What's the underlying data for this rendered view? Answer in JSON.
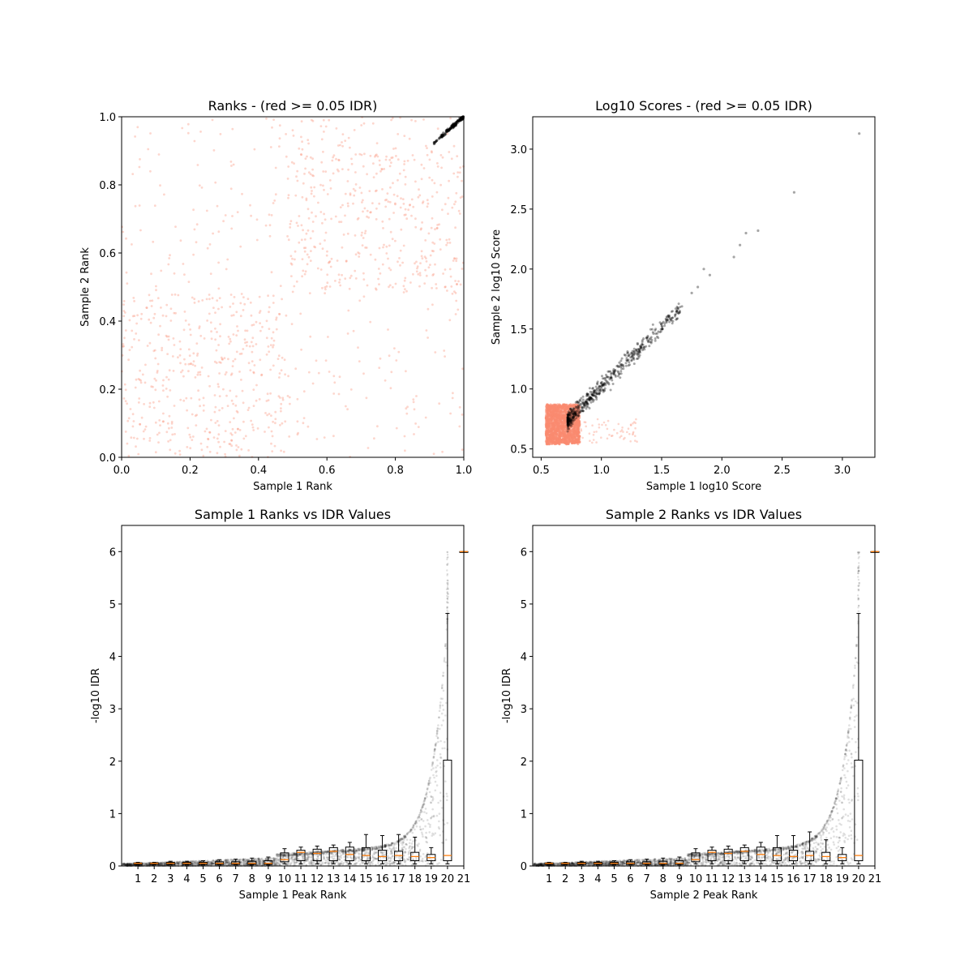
{
  "figure": {
    "colors": {
      "fail": "#fa8a70",
      "pass": "#000000",
      "median": "#ff7f0e",
      "box": "#000000"
    }
  },
  "chart_data": [
    {
      "type": "scatter",
      "title": "Ranks - (red >= 0.05 IDR)",
      "xlabel": "Sample 1 Rank",
      "ylabel": "Sample 2 Rank",
      "xlim": [
        0.0,
        1.0
      ],
      "ylim": [
        0.0,
        1.0
      ],
      "xticks": [
        "0.0",
        "0.2",
        "0.4",
        "0.6",
        "0.8",
        "1.0"
      ],
      "yticks": [
        "0.0",
        "0.2",
        "0.4",
        "0.6",
        "0.8",
        "1.0"
      ],
      "grid": false,
      "series": [
        {
          "color": "#fa8a70",
          "blocks": [
            {
              "x": [
                0.0,
                0.48
              ],
              "y": [
                0.0,
                0.48
              ],
              "density": "high"
            },
            {
              "x": [
                0.0,
                0.48
              ],
              "y": [
                0.48,
                0.89
              ],
              "density": "low"
            },
            {
              "x": [
                0.0,
                0.48
              ],
              "y": [
                0.89,
                1.0
              ],
              "density": "low"
            },
            {
              "x": [
                0.48,
                0.9
              ],
              "y": [
                0.48,
                0.89
              ],
              "density": "high"
            },
            {
              "x": [
                0.48,
                0.9
              ],
              "y": [
                0.0,
                0.48
              ],
              "density": "low"
            },
            {
              "x": [
                0.48,
                0.9
              ],
              "y": [
                0.89,
                1.0
              ],
              "density": "medium"
            },
            {
              "x": [
                0.9,
                1.0
              ],
              "y": [
                0.48,
                0.9
              ],
              "density": "high"
            },
            {
              "x": [
                0.9,
                1.0
              ],
              "y": [
                0.0,
                0.48
              ],
              "density": "low"
            },
            {
              "x": [
                0.9,
                1.0
              ],
              "y": [
                0.9,
                1.0
              ],
              "density": "low"
            }
          ]
        },
        {
          "color": "#000000",
          "trend": {
            "x": [
              0.91,
              1.0
            ],
            "y": [
              0.92,
              1.0
            ]
          }
        }
      ]
    },
    {
      "type": "scatter",
      "title": "Log10 Scores - (red >= 0.05 IDR)",
      "xlabel": "Sample 1 log10 Score",
      "ylabel": "Sample 2 log10 Score",
      "xlim": [
        0.43,
        3.27
      ],
      "ylim": [
        0.43,
        3.27
      ],
      "xticks": [
        "0.5",
        "1.0",
        "1.5",
        "2.0",
        "2.5",
        "3.0"
      ],
      "yticks": [
        "0.5",
        "1.0",
        "1.5",
        "2.0",
        "2.5",
        "3.0"
      ],
      "grid": false,
      "series": [
        {
          "color": "#fa8a70",
          "cluster": {
            "x": [
              0.54,
              0.82
            ],
            "y": [
              0.54,
              0.87
            ]
          }
        },
        {
          "color": "#000000",
          "points": [
            [
              0.72,
              0.73
            ],
            [
              0.75,
              0.75
            ],
            [
              0.78,
              0.78
            ],
            [
              0.82,
              0.82
            ],
            [
              0.85,
              0.88
            ],
            [
              0.9,
              0.92
            ],
            [
              0.95,
              0.98
            ],
            [
              1.0,
              1.02
            ],
            [
              1.05,
              1.1
            ],
            [
              1.1,
              1.15
            ],
            [
              1.15,
              1.22
            ],
            [
              1.2,
              1.28
            ],
            [
              1.25,
              1.3
            ],
            [
              1.3,
              1.38
            ],
            [
              1.35,
              1.42
            ],
            [
              1.45,
              1.5
            ],
            [
              1.55,
              1.6
            ],
            [
              1.65,
              1.65
            ],
            [
              1.75,
              1.8
            ],
            [
              1.8,
              1.85
            ],
            [
              1.85,
              2.0
            ],
            [
              1.9,
              1.95
            ],
            [
              2.1,
              2.1
            ],
            [
              2.15,
              2.2
            ],
            [
              2.2,
              2.3
            ],
            [
              2.3,
              2.32
            ],
            [
              2.6,
              2.64
            ],
            [
              3.14,
              3.13
            ]
          ]
        }
      ]
    },
    {
      "type": "box",
      "title": "Sample 1 Ranks vs IDR Values",
      "xlabel": "Sample 1 Peak Rank",
      "ylabel": "-log10 IDR",
      "xlim": [
        0,
        21
      ],
      "ylim": [
        0,
        6.5
      ],
      "xticks": [
        "1",
        "2",
        "3",
        "4",
        "5",
        "6",
        "7",
        "8",
        "9",
        "10",
        "11",
        "12",
        "13",
        "14",
        "15",
        "16",
        "17",
        "18",
        "19",
        "20",
        "21"
      ],
      "yticks": [
        "0",
        "1",
        "2",
        "3",
        "4",
        "5",
        "6"
      ],
      "grid": false,
      "boxes": [
        {
          "pos": 1,
          "q1": 0.03,
          "med": 0.05,
          "q3": 0.06,
          "whislo": 0.02,
          "whishi": 0.07
        },
        {
          "pos": 2,
          "q1": 0.03,
          "med": 0.05,
          "q3": 0.06,
          "whislo": 0.02,
          "whishi": 0.07
        },
        {
          "pos": 3,
          "q1": 0.03,
          "med": 0.05,
          "q3": 0.07,
          "whislo": 0.02,
          "whishi": 0.09
        },
        {
          "pos": 4,
          "q1": 0.03,
          "med": 0.05,
          "q3": 0.07,
          "whislo": 0.02,
          "whishi": 0.09
        },
        {
          "pos": 5,
          "q1": 0.03,
          "med": 0.05,
          "q3": 0.07,
          "whislo": 0.02,
          "whishi": 0.1
        },
        {
          "pos": 6,
          "q1": 0.03,
          "med": 0.05,
          "q3": 0.08,
          "whislo": 0.02,
          "whishi": 0.12
        },
        {
          "pos": 7,
          "q1": 0.03,
          "med": 0.05,
          "q3": 0.08,
          "whislo": 0.02,
          "whishi": 0.13
        },
        {
          "pos": 8,
          "q1": 0.03,
          "med": 0.05,
          "q3": 0.09,
          "whislo": 0.02,
          "whishi": 0.15
        },
        {
          "pos": 9,
          "q1": 0.03,
          "med": 0.05,
          "q3": 0.1,
          "whislo": 0.02,
          "whishi": 0.17
        },
        {
          "pos": 10,
          "q1": 0.08,
          "med": 0.12,
          "q3": 0.25,
          "whislo": 0.04,
          "whishi": 0.33
        },
        {
          "pos": 11,
          "q1": 0.1,
          "med": 0.26,
          "q3": 0.3,
          "whislo": 0.04,
          "whishi": 0.36
        },
        {
          "pos": 12,
          "q1": 0.1,
          "med": 0.24,
          "q3": 0.32,
          "whislo": 0.04,
          "whishi": 0.38
        },
        {
          "pos": 13,
          "q1": 0.1,
          "med": 0.28,
          "q3": 0.35,
          "whislo": 0.04,
          "whishi": 0.4
        },
        {
          "pos": 14,
          "q1": 0.1,
          "med": 0.22,
          "q3": 0.36,
          "whislo": 0.04,
          "whishi": 0.45
        },
        {
          "pos": 15,
          "q1": 0.1,
          "med": 0.2,
          "q3": 0.35,
          "whislo": 0.04,
          "whishi": 0.6
        },
        {
          "pos": 16,
          "q1": 0.1,
          "med": 0.18,
          "q3": 0.3,
          "whislo": 0.04,
          "whishi": 0.58
        },
        {
          "pos": 17,
          "q1": 0.1,
          "med": 0.2,
          "q3": 0.28,
          "whislo": 0.04,
          "whishi": 0.6
        },
        {
          "pos": 18,
          "q1": 0.1,
          "med": 0.18,
          "q3": 0.26,
          "whislo": 0.04,
          "whishi": 0.55
        },
        {
          "pos": 19,
          "q1": 0.1,
          "med": 0.16,
          "q3": 0.22,
          "whislo": 0.04,
          "whishi": 0.35
        },
        {
          "pos": 20,
          "q1": 0.1,
          "med": 0.2,
          "q3": 2.02,
          "whislo": 0.04,
          "whishi": 4.82
        },
        {
          "pos": 21,
          "q1": 6.0,
          "med": 6.0,
          "q3": 6.0,
          "whislo": 6.0,
          "whishi": 6.0
        }
      ]
    },
    {
      "type": "box",
      "title": "Sample 2 Ranks vs IDR Values",
      "xlabel": "Sample 2 Peak Rank",
      "ylabel": "-log10 IDR",
      "xlim": [
        0,
        21
      ],
      "ylim": [
        0,
        6.5
      ],
      "xticks": [
        "1",
        "2",
        "3",
        "4",
        "5",
        "6",
        "7",
        "8",
        "9",
        "10",
        "11",
        "12",
        "13",
        "14",
        "15",
        "16",
        "17",
        "18",
        "19",
        "20",
        "21"
      ],
      "yticks": [
        "0",
        "1",
        "2",
        "3",
        "4",
        "5",
        "6"
      ],
      "grid": false,
      "boxes": [
        {
          "pos": 1,
          "q1": 0.03,
          "med": 0.05,
          "q3": 0.06,
          "whislo": 0.02,
          "whishi": 0.07
        },
        {
          "pos": 2,
          "q1": 0.03,
          "med": 0.05,
          "q3": 0.06,
          "whislo": 0.02,
          "whishi": 0.07
        },
        {
          "pos": 3,
          "q1": 0.03,
          "med": 0.05,
          "q3": 0.07,
          "whislo": 0.02,
          "whishi": 0.09
        },
        {
          "pos": 4,
          "q1": 0.03,
          "med": 0.05,
          "q3": 0.07,
          "whislo": 0.02,
          "whishi": 0.09
        },
        {
          "pos": 5,
          "q1": 0.03,
          "med": 0.05,
          "q3": 0.07,
          "whislo": 0.02,
          "whishi": 0.1
        },
        {
          "pos": 6,
          "q1": 0.03,
          "med": 0.05,
          "q3": 0.08,
          "whislo": 0.02,
          "whishi": 0.12
        },
        {
          "pos": 7,
          "q1": 0.03,
          "med": 0.05,
          "q3": 0.08,
          "whislo": 0.02,
          "whishi": 0.13
        },
        {
          "pos": 8,
          "q1": 0.03,
          "med": 0.05,
          "q3": 0.09,
          "whislo": 0.02,
          "whishi": 0.15
        },
        {
          "pos": 9,
          "q1": 0.03,
          "med": 0.05,
          "q3": 0.1,
          "whislo": 0.02,
          "whishi": 0.17
        },
        {
          "pos": 10,
          "q1": 0.08,
          "med": 0.12,
          "q3": 0.25,
          "whislo": 0.04,
          "whishi": 0.33
        },
        {
          "pos": 11,
          "q1": 0.1,
          "med": 0.26,
          "q3": 0.3,
          "whislo": 0.04,
          "whishi": 0.36
        },
        {
          "pos": 12,
          "q1": 0.1,
          "med": 0.24,
          "q3": 0.32,
          "whislo": 0.04,
          "whishi": 0.38
        },
        {
          "pos": 13,
          "q1": 0.1,
          "med": 0.28,
          "q3": 0.35,
          "whislo": 0.04,
          "whishi": 0.4
        },
        {
          "pos": 14,
          "q1": 0.1,
          "med": 0.22,
          "q3": 0.36,
          "whislo": 0.04,
          "whishi": 0.45
        },
        {
          "pos": 15,
          "q1": 0.1,
          "med": 0.2,
          "q3": 0.35,
          "whislo": 0.04,
          "whishi": 0.58
        },
        {
          "pos": 16,
          "q1": 0.1,
          "med": 0.18,
          "q3": 0.3,
          "whislo": 0.04,
          "whishi": 0.58
        },
        {
          "pos": 17,
          "q1": 0.1,
          "med": 0.2,
          "q3": 0.28,
          "whislo": 0.04,
          "whishi": 0.65
        },
        {
          "pos": 18,
          "q1": 0.1,
          "med": 0.18,
          "q3": 0.26,
          "whislo": 0.04,
          "whishi": 0.5
        },
        {
          "pos": 19,
          "q1": 0.1,
          "med": 0.16,
          "q3": 0.22,
          "whislo": 0.04,
          "whishi": 0.35
        },
        {
          "pos": 20,
          "q1": 0.1,
          "med": 0.2,
          "q3": 2.02,
          "whislo": 0.04,
          "whishi": 4.82
        },
        {
          "pos": 21,
          "q1": 6.0,
          "med": 6.0,
          "q3": 6.0,
          "whislo": 6.0,
          "whishi": 6.0
        }
      ]
    }
  ]
}
